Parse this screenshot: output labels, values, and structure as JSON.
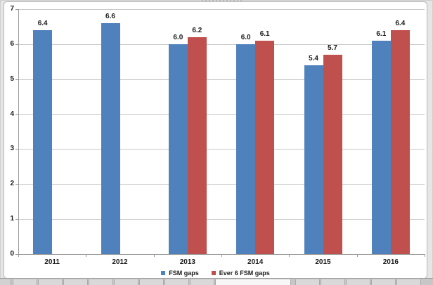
{
  "chart_data": {
    "type": "bar",
    "title": "",
    "xlabel": "",
    "ylabel": "",
    "categories": [
      "2011",
      "2012",
      "2013",
      "2014",
      "2015",
      "2016"
    ],
    "series": [
      {
        "name": "FSM gaps",
        "color": "#4F81BD",
        "values": [
          6.4,
          6.6,
          6.0,
          6.0,
          5.4,
          6.1
        ],
        "labels": [
          "6.4",
          "6.6",
          "6.0",
          "6.0",
          "5.4",
          "6.1"
        ]
      },
      {
        "name": "Ever 6 FSM gaps",
        "color": "#C0504D",
        "values": [
          null,
          null,
          6.2,
          6.1,
          5.7,
          6.4
        ],
        "labels": [
          "",
          "",
          "6.2",
          "6.1",
          "5.7",
          "6.4"
        ]
      }
    ],
    "ylim": [
      0,
      7
    ],
    "yticks": [
      "0",
      "1",
      "2",
      "3",
      "4",
      "5",
      "6",
      "7"
    ],
    "grid": true,
    "gridline_color": "#c9c9c9",
    "axis_color": "#9b9b9b",
    "label_color": "#1a1a1a",
    "legend_position": "bottom"
  }
}
